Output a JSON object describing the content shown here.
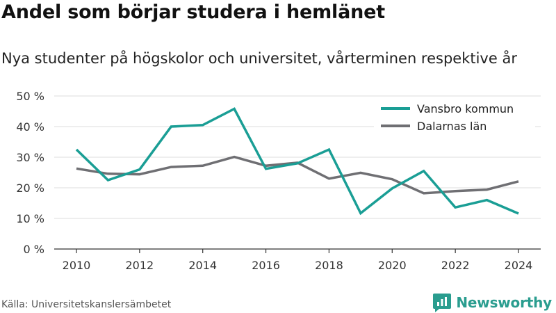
{
  "title": "Andel som börjar studera i hemlänet",
  "subtitle": "Nya studenter på högskolor och universitet, vårterminen respektive år",
  "source": "Källa: Universitetskanslersämbetet",
  "brand": "Newsworthy",
  "colors": {
    "vansbro": "#1a9e95",
    "dalarna": "#6f6f73",
    "grid": "#dddddd",
    "brand": "#2a9d8f"
  },
  "chart_data": {
    "type": "line",
    "x": [
      2010,
      2011,
      2012,
      2013,
      2014,
      2015,
      2016,
      2017,
      2018,
      2019,
      2020,
      2021,
      2022,
      2023,
      2024
    ],
    "x_ticks": [
      "2010",
      "2012",
      "2014",
      "2016",
      "2018",
      "2020",
      "2022",
      "2024"
    ],
    "y_ticks": [
      "0 %",
      "10 %",
      "20 %",
      "30 %",
      "40 %",
      "50 %"
    ],
    "ylim": [
      0,
      50
    ],
    "grid": true,
    "legend_position": "top-right",
    "series": [
      {
        "name": "Vansbro kommun",
        "values": [
          32.5,
          22.5,
          26,
          40,
          40.5,
          45.8,
          26.2,
          28,
          32.5,
          11.7,
          19.8,
          25.5,
          13.6,
          16,
          11.6
        ]
      },
      {
        "name": "Dalarnas län",
        "values": [
          26.3,
          24.6,
          24.4,
          26.8,
          27.2,
          30.1,
          27.2,
          28.2,
          23,
          24.9,
          22.8,
          18.2,
          18.9,
          19.4,
          22.1
        ]
      }
    ]
  }
}
